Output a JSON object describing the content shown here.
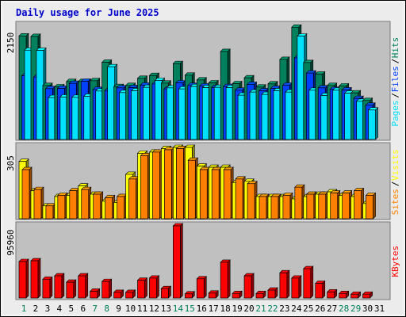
{
  "chart_data": {
    "type": "bar",
    "title": "Daily usage for June 2025",
    "colors": {
      "background": "#ececec",
      "plot": "#c0c0c0",
      "title": "#0000cc",
      "hits": "#00805c",
      "files": "#0040ff",
      "pages": "#00e0ff",
      "visits": "#ffff00",
      "sites": "#ff8000",
      "kbytes": "#ff0000",
      "weekend_label": "#00805c",
      "weekday_label": "#0000cc"
    },
    "days": [
      "1",
      "2",
      "3",
      "4",
      "5",
      "6",
      "7",
      "8",
      "9",
      "10",
      "11",
      "12",
      "13",
      "14",
      "15",
      "16",
      "17",
      "18",
      "19",
      "20",
      "21",
      "22",
      "23",
      "24",
      "25",
      "26",
      "27",
      "28",
      "29",
      "30",
      "31"
    ],
    "weekend_days": [
      "1",
      "7",
      "8",
      "14",
      "15",
      "21",
      "22",
      "28",
      "29"
    ],
    "panels": [
      {
        "id": "hits-files-pages",
        "axis_max_label": "2150",
        "ymax": 2150,
        "series_labels": [
          {
            "text": "Pages",
            "color": "#00e0ff"
          },
          {
            "text": "/",
            "color": "#000000"
          },
          {
            "text": "Files",
            "color": "#0040ff"
          },
          {
            "text": "/",
            "color": "#000000"
          },
          {
            "text": "Hits",
            "color": "#00805c"
          }
        ],
        "series": [
          {
            "name": "Hits",
            "color": "#00805c",
            "values": [
              1965,
              1955,
              1025,
              1000,
              1100,
              1100,
              1115,
              1465,
              1005,
              1025,
              1160,
              1215,
              1070,
              1440,
              1220,
              1130,
              1075,
              1670,
              1060,
              1170,
              995,
              1055,
              1520,
              2130,
              1460,
              1240,
              1025,
              1015,
              885,
              740,
              null
            ]
          },
          {
            "name": "Files",
            "color": "#0040ff",
            "values": [
              1210,
              1185,
              965,
              970,
              1065,
              1105,
              950,
              930,
              980,
              985,
              1030,
              1055,
              960,
              1075,
              1025,
              1015,
              985,
              1005,
              935,
              1045,
              925,
              970,
              1030,
              1550,
              1260,
              980,
              950,
              940,
              780,
              650,
              null
            ]
          },
          {
            "name": "Pages",
            "color": "#00e0ff",
            "values": [
              1695,
              1690,
              795,
              805,
              800,
              820,
              920,
              1380,
              890,
              925,
              990,
              1120,
              980,
              960,
              1005,
              985,
              990,
              985,
              840,
              900,
              855,
              925,
              900,
              1960,
              935,
              835,
              935,
              880,
              725,
              560,
              null
            ]
          }
        ]
      },
      {
        "id": "visits-sites",
        "axis_max_label": "305",
        "ymax": 305,
        "series_labels": [
          {
            "text": "Sites",
            "color": "#ff8000"
          },
          {
            "text": "/",
            "color": "#000000"
          },
          {
            "text": "Visits",
            "color": "#ffff00"
          }
        ],
        "series": [
          {
            "name": "Visits",
            "color": "#ffff00",
            "values": [
              245,
              120,
              55,
              95,
              100,
              140,
              105,
              75,
              70,
              190,
              280,
              285,
              300,
              305,
              305,
              225,
              220,
              220,
              155,
              160,
              95,
              95,
              95,
              85,
              95,
              105,
              115,
              100,
              95,
              65,
              null
            ]
          },
          {
            "name": "Sites",
            "color": "#ff8000",
            "values": [
              210,
              125,
              55,
              100,
              120,
              125,
              105,
              90,
              95,
              170,
              270,
              285,
              295,
              300,
              250,
              210,
              210,
              210,
              170,
              150,
              95,
              95,
              100,
              135,
              105,
              105,
              110,
              110,
              120,
              100,
              null
            ]
          }
        ]
      },
      {
        "id": "kbytes",
        "axis_max_label": "95960",
        "ymax": 95960,
        "series_labels": [
          {
            "text": "KBytes",
            "color": "#ff0000"
          }
        ],
        "series": [
          {
            "name": "KBytes",
            "color": "#ff0000",
            "values": [
              48500,
              49500,
              25000,
              29500,
              21000,
              29500,
              9000,
              22000,
              7500,
              7500,
              23500,
              26500,
              12500,
              95960,
              5500,
              25500,
              6500,
              47500,
              6000,
              29500,
              6000,
              10500,
              33500,
              26500,
              39000,
              19500,
              8000,
              6000,
              5000,
              5000,
              null
            ]
          }
        ]
      }
    ]
  }
}
